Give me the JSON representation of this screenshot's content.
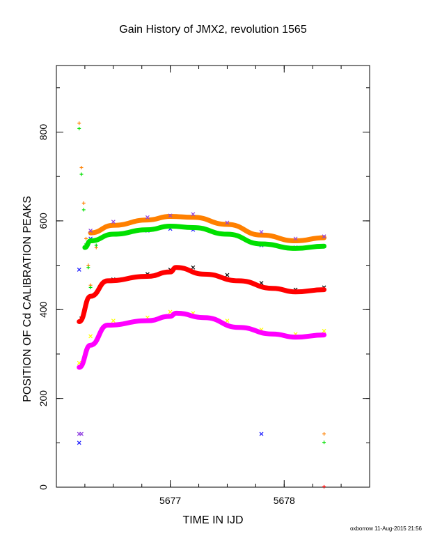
{
  "chart_data": {
    "type": "scatter",
    "title": "Gain History of JMX2, revolution 1565",
    "xlabel": "TIME IN IJD",
    "ylabel": "POSITION OF Cd CALIBRATION PEAKS",
    "xlim": [
      5676.0,
      5678.75
    ],
    "ylim": [
      0,
      950
    ],
    "xticks": [
      5677,
      5678
    ],
    "yticks": [
      0,
      200,
      400,
      600,
      800
    ],
    "grid": false,
    "legend": "none",
    "series": [
      {
        "color": "#ff8000",
        "marker": "line",
        "x": [
          5676.3,
          5676.5,
          5676.8,
          5677.0,
          5677.2,
          5677.5,
          5677.8,
          5678.1,
          5678.35
        ],
        "values": [
          573,
          590,
          602,
          610,
          608,
          592,
          568,
          555,
          562
        ]
      },
      {
        "color": "#9040e0",
        "marker": "x",
        "x": [
          5676.3,
          5676.5,
          5676.8,
          5677.0,
          5677.2,
          5677.5,
          5677.8,
          5678.1,
          5678.35
        ],
        "values": [
          578,
          598,
          608,
          612,
          615,
          596,
          575,
          560,
          565
        ]
      },
      {
        "color": "#1818ff",
        "marker": "x",
        "x": [
          5676.2,
          5676.3,
          5676.5,
          5676.8,
          5677.0,
          5677.2,
          5677.5,
          5677.8,
          5678.1,
          5678.35
        ],
        "values": [
          490,
          560,
          570,
          578,
          582,
          580,
          570,
          545,
          540,
          543
        ]
      },
      {
        "color": "#00e000",
        "marker": "line",
        "x": [
          5676.25,
          5676.3,
          5676.5,
          5676.8,
          5677.0,
          5677.2,
          5677.5,
          5677.8,
          5678.1,
          5678.35
        ],
        "values": [
          540,
          555,
          570,
          580,
          588,
          585,
          570,
          548,
          538,
          543
        ]
      },
      {
        "color": "#000000",
        "marker": "x",
        "x": [
          5676.22,
          5676.3,
          5676.5,
          5676.8,
          5677.0,
          5677.2,
          5677.5,
          5677.8,
          5678.1,
          5678.35
        ],
        "values": [
          380,
          430,
          468,
          480,
          490,
          495,
          478,
          460,
          445,
          450
        ]
      },
      {
        "color": "#ff0000",
        "marker": "line",
        "x": [
          5676.2,
          5676.3,
          5676.45,
          5676.8,
          5677.0,
          5677.05,
          5677.3,
          5677.6,
          5677.9,
          5678.1,
          5678.35
        ],
        "values": [
          373,
          430,
          465,
          475,
          485,
          495,
          480,
          465,
          448,
          440,
          445
        ]
      },
      {
        "color": "#ffff00",
        "marker": "x",
        "x": [
          5676.2,
          5676.3,
          5676.5,
          5676.8,
          5677.0,
          5677.2,
          5677.5,
          5677.8,
          5678.1,
          5678.35
        ],
        "values": [
          280,
          340,
          375,
          382,
          395,
          392,
          375,
          355,
          345,
          352
        ]
      },
      {
        "color": "#ff00ff",
        "marker": "line",
        "x": [
          5676.2,
          5676.3,
          5676.45,
          5676.8,
          5677.0,
          5677.05,
          5677.3,
          5677.6,
          5677.9,
          5678.1,
          5678.35
        ],
        "values": [
          270,
          320,
          365,
          375,
          385,
          392,
          382,
          360,
          345,
          338,
          343
        ]
      },
      {
        "color": "#ff8000",
        "marker": "plus",
        "x": [
          5676.2,
          5676.22,
          5676.24,
          5676.26,
          5676.28,
          5676.3,
          5676.35,
          5678.35
        ],
        "values": [
          820,
          720,
          640,
          560,
          500,
          455,
          540,
          120
        ]
      },
      {
        "color": "#00e000",
        "marker": "plus",
        "x": [
          5676.2,
          5676.22,
          5676.24,
          5676.26,
          5676.28,
          5676.3,
          5676.35,
          5678.35
        ],
        "values": [
          808,
          705,
          625,
          548,
          495,
          450,
          545,
          101
        ]
      },
      {
        "color": "#1818ff",
        "marker": "x",
        "x": [
          5676.2,
          5677.8
        ],
        "values": [
          100,
          120
        ]
      },
      {
        "color": "#9040e0",
        "marker": "x",
        "x": [
          5676.2,
          5676.22
        ],
        "values": [
          120,
          120
        ]
      },
      {
        "color": "#ff0000",
        "marker": "plus",
        "x": [
          5678.35
        ],
        "values": [
          1
        ]
      }
    ]
  },
  "footer": "oxborrow 11-Aug-2015 21:56"
}
